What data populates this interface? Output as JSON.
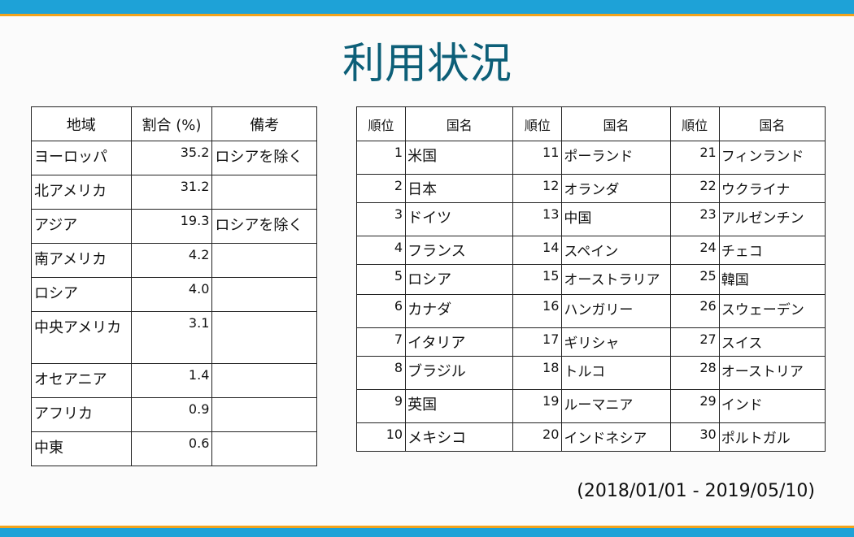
{
  "title": "利用状況",
  "period": "(2018/01/01 - 2019/05/10)",
  "colors": {
    "top_bar": "#1ea2d7",
    "accent_stripe": "#f2a31c",
    "title": "#0d5f78"
  },
  "region_table": {
    "headers": {
      "region": "地域",
      "share": "割合 (%)",
      "note": "備考"
    },
    "rows": [
      {
        "region": "ヨーロッパ",
        "share": "35.2",
        "note": "ロシアを除く"
      },
      {
        "region": "北アメリカ",
        "share": "31.2",
        "note": ""
      },
      {
        "region": "アジア",
        "share": "19.3",
        "note": "ロシアを除く"
      },
      {
        "region": "南アメリカ",
        "share": "4.2",
        "note": ""
      },
      {
        "region": "ロシア",
        "share": "4.0",
        "note": ""
      },
      {
        "region": "中央アメリカ",
        "share": "3.1",
        "note": ""
      },
      {
        "region": "オセアニア",
        "share": "1.4",
        "note": ""
      },
      {
        "region": "アフリカ",
        "share": "0.9",
        "note": ""
      },
      {
        "region": "中東",
        "share": "0.6",
        "note": ""
      }
    ]
  },
  "rank_table": {
    "headers": {
      "rank": "順位",
      "country": "国名"
    },
    "rows": [
      {
        "r1": "1",
        "c1": "米国",
        "r2": "11",
        "c2": "ポーランド",
        "r3": "21",
        "c3": "フィンランド"
      },
      {
        "r1": "2",
        "c1": "日本",
        "r2": "12",
        "c2": "オランダ",
        "r3": "22",
        "c3": "ウクライナ"
      },
      {
        "r1": "3",
        "c1": "ドイツ",
        "r2": "13",
        "c2": "中国",
        "r3": "23",
        "c3": "アルゼンチン"
      },
      {
        "r1": "4",
        "c1": "フランス",
        "r2": "14",
        "c2": "スペイン",
        "r3": "24",
        "c3": "チェコ"
      },
      {
        "r1": "5",
        "c1": "ロシア",
        "r2": "15",
        "c2": "オーストラリア",
        "r3": "25",
        "c3": "韓国"
      },
      {
        "r1": "6",
        "c1": "カナダ",
        "r2": "16",
        "c2": "ハンガリー",
        "r3": "26",
        "c3": "スウェーデン"
      },
      {
        "r1": "7",
        "c1": "イタリア",
        "r2": "17",
        "c2": "ギリシャ",
        "r3": "27",
        "c3": "スイス"
      },
      {
        "r1": "8",
        "c1": "ブラジル",
        "r2": "18",
        "c2": "トルコ",
        "r3": "28",
        "c3": "オーストリア"
      },
      {
        "r1": "9",
        "c1": "英国",
        "r2": "19",
        "c2": "ルーマニア",
        "r3": "29",
        "c3": "インド"
      },
      {
        "r1": "10",
        "c1": "メキシコ",
        "r2": "20",
        "c2": "インドネシア",
        "r3": "30",
        "c3": "ポルトガル"
      }
    ]
  }
}
